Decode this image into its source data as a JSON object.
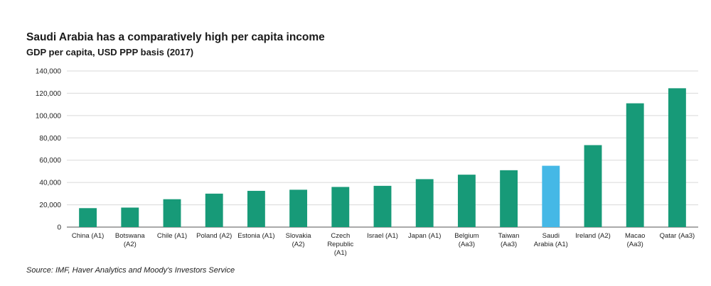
{
  "chart_data": {
    "type": "bar",
    "title": "Saudi Arabia has a comparatively high per capita income",
    "subtitle": "GDP per capita, USD PPP basis (2017)",
    "xlabel": "",
    "ylabel": "",
    "ylim": [
      0,
      140000
    ],
    "yticks": [
      0,
      20000,
      40000,
      60000,
      80000,
      100000,
      120000,
      140000
    ],
    "ytick_labels": [
      "0",
      "20,000",
      "40,000",
      "60,000",
      "80,000",
      "100,000",
      "120,000",
      "140,000"
    ],
    "grid": true,
    "categories": [
      [
        "China (A1)"
      ],
      [
        "Botswana",
        "(A2)"
      ],
      [
        "Chile (A1)"
      ],
      [
        "Poland (A2)"
      ],
      [
        "Estonia (A1)"
      ],
      [
        "Slovakia",
        "(A2)"
      ],
      [
        "Czech",
        "Republic",
        "(A1)"
      ],
      [
        "Israel (A1)"
      ],
      [
        "Japan (A1)"
      ],
      [
        "Belgium",
        "(Aa3)"
      ],
      [
        "Taiwan",
        "(Aa3)"
      ],
      [
        "Saudi",
        "Arabia (A1)"
      ],
      [
        "Ireland (A2)"
      ],
      [
        "Macao",
        "(Aa3)"
      ],
      [
        "Qatar (Aa3)"
      ]
    ],
    "values": [
      17000,
      17500,
      25000,
      30000,
      32500,
      33500,
      36000,
      37000,
      43000,
      47000,
      51000,
      55000,
      73500,
      111000,
      124500
    ],
    "highlight_index": 11,
    "colors": {
      "bar": "#179a78",
      "highlight": "#45b8e6",
      "grid": "#d9d9d9",
      "axis": "#555555"
    },
    "source": "Source: IMF, Haver Analytics and Moody's Investors Service"
  }
}
